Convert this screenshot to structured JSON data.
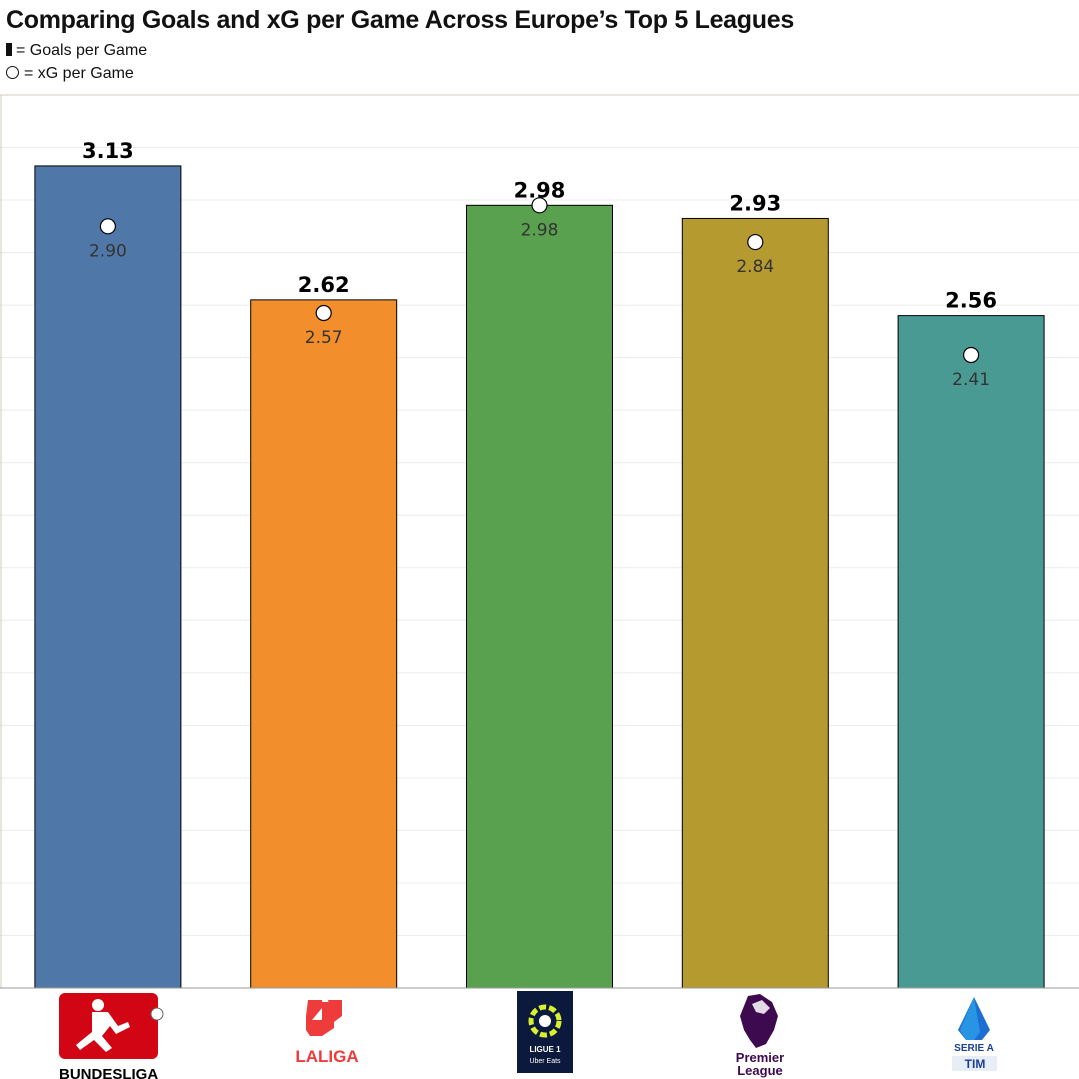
{
  "chart_data": {
    "type": "bar",
    "title": "Comparing Goals and xG per Game Across Europe’s Top 5 Leagues",
    "legend": [
      {
        "marker": "bar",
        "label": "= Goals per Game"
      },
      {
        "marker": "circle",
        "label": "= xG per Game"
      }
    ],
    "categories": [
      "Bundesliga",
      "LaLiga",
      "Ligue 1",
      "Premier League",
      "Serie A"
    ],
    "series": [
      {
        "name": "Goals per Game",
        "values": [
          3.13,
          2.62,
          2.98,
          2.93,
          2.56
        ]
      },
      {
        "name": "xG per Game",
        "values": [
          2.9,
          2.57,
          2.98,
          2.84,
          2.41
        ]
      }
    ],
    "bar_colors": [
      "#4f78a8",
      "#f28e2c",
      "#59a14f",
      "#b59a30",
      "#4a9a94"
    ],
    "ylim": [
      0,
      3.4
    ],
    "grid": true,
    "xlabel": "",
    "ylabel": ""
  },
  "logos": {
    "bundesliga": {
      "text_a": "BUNDES",
      "text_b": "LIGA",
      "color": "#d20515"
    },
    "laliga": {
      "text": "LALIGA",
      "color": "#ee3b3b"
    },
    "ligue1": {
      "line1": "LIGUE 1",
      "line2": "Uber Eats",
      "color": "#0b1a3c",
      "accent": "#d9f02f"
    },
    "premier_league": {
      "line1": "Premier",
      "line2": "League",
      "color": "#3d0a4f"
    },
    "serie_a": {
      "line1": "SERIE A",
      "line2": "TIM",
      "color": "#1c3f94"
    }
  }
}
